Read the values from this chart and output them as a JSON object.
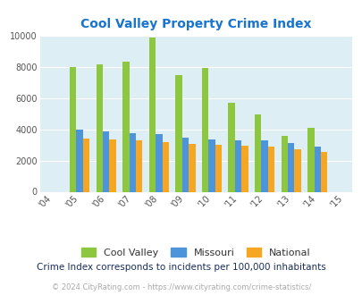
{
  "title": "Cool Valley Property Crime Index",
  "title_color": "#1874cd",
  "years": [
    2005,
    2006,
    2007,
    2008,
    2009,
    2010,
    2011,
    2012,
    2013,
    2014
  ],
  "xtick_labels": [
    "'04",
    "'05",
    "'06",
    "'07",
    "'08",
    "'09",
    "'10",
    "'11",
    "'12",
    "'13",
    "'14",
    "'15"
  ],
  "cool_valley": [
    7950,
    8150,
    8300,
    9850,
    7450,
    7900,
    5700,
    4950,
    3550,
    4100
  ],
  "missouri": [
    3950,
    3850,
    3750,
    3700,
    3450,
    3350,
    3300,
    3300,
    3100,
    2900
  ],
  "national": [
    3400,
    3350,
    3300,
    3200,
    3050,
    2980,
    2930,
    2870,
    2700,
    2550
  ],
  "color_cv": "#8dc63f",
  "color_mo": "#4d94db",
  "color_na": "#f5a623",
  "ylim": [
    0,
    10000
  ],
  "yticks": [
    0,
    2000,
    4000,
    6000,
    8000,
    10000
  ],
  "background_color": "#ddeef4",
  "grid_color": "#ffffff",
  "legend_labels": [
    "Cool Valley",
    "Missouri",
    "National"
  ],
  "subtitle": "Crime Index corresponds to incidents per 100,000 inhabitants",
  "subtitle_color": "#1a2e5a",
  "footer": "© 2024 CityRating.com - https://www.cityrating.com/crime-statistics/",
  "footer_color": "#aaaaaa",
  "bar_width": 0.25
}
